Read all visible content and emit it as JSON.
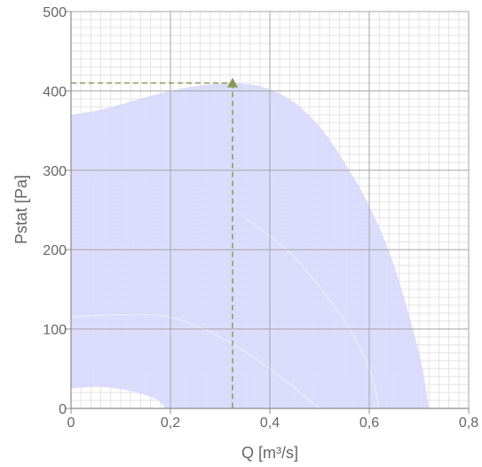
{
  "chart_data": {
    "type": "area",
    "title": "",
    "xlabel": "Q [m³/s]",
    "ylabel": "Pstat [Pa]",
    "xlim": [
      0,
      0.8
    ],
    "ylim": [
      0,
      500
    ],
    "x_ticks": [
      0,
      0.2,
      0.4,
      0.6,
      0.8
    ],
    "x_tick_labels": [
      "0",
      "0,2",
      "0,4",
      "0,6",
      "0,8"
    ],
    "y_ticks": [
      0,
      100,
      200,
      300,
      400,
      500
    ],
    "y_tick_labels": [
      "0",
      "100",
      "200",
      "300",
      "400",
      "500"
    ],
    "grid": true,
    "minor_grid": true,
    "legend": "none",
    "colors": {
      "fill": "#d6d6fb",
      "major_grid": "#a6a6a6",
      "minor_grid": "#e4e4e4",
      "axis": "#8c8c8c",
      "operating_point": "#8a9a52",
      "inner_curve": "#eaeaff"
    },
    "operating_range": {
      "upper": [
        [
          0,
          370
        ],
        [
          0.05,
          375
        ],
        [
          0.1,
          383
        ],
        [
          0.15,
          392
        ],
        [
          0.2,
          400
        ],
        [
          0.25,
          406
        ],
        [
          0.3,
          409
        ],
        [
          0.35,
          409
        ],
        [
          0.4,
          402
        ],
        [
          0.45,
          385
        ],
        [
          0.5,
          355
        ],
        [
          0.55,
          310
        ],
        [
          0.6,
          255
        ],
        [
          0.65,
          180
        ],
        [
          0.7,
          70
        ],
        [
          0.72,
          0
        ]
      ],
      "lower": [
        [
          0.19,
          0
        ],
        [
          0.17,
          12
        ],
        [
          0.12,
          22
        ],
        [
          0.06,
          27
        ],
        [
          0,
          25
        ]
      ]
    },
    "inner_curves": [
      [
        [
          0,
          115
        ],
        [
          0.1,
          118
        ],
        [
          0.2,
          115
        ],
        [
          0.3,
          90
        ],
        [
          0.4,
          50
        ],
        [
          0.5,
          0
        ]
      ],
      [
        [
          0.35,
          240
        ],
        [
          0.45,
          190
        ],
        [
          0.55,
          110
        ],
        [
          0.6,
          50
        ],
        [
          0.62,
          0
        ]
      ]
    ],
    "operating_point": {
      "x": 0.325,
      "y": 410
    }
  }
}
